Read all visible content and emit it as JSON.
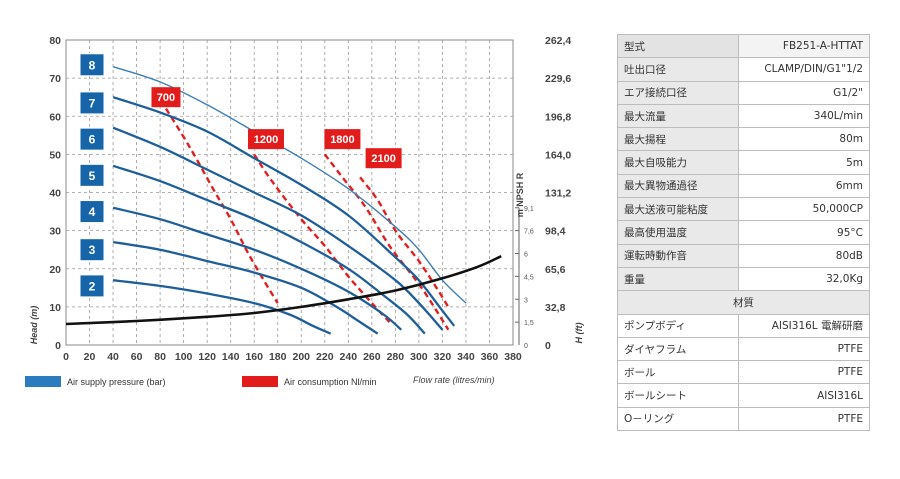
{
  "chart_data": {
    "type": "line",
    "xlabel": "Flow rate (litres/min)",
    "ylabel_left": "Head (m)",
    "ylabel_right": "H (ft)",
    "npsh_label": "m NPSH R",
    "xlim": [
      0,
      380
    ],
    "ylim": [
      0,
      80
    ],
    "x_ticks": [
      0,
      20,
      40,
      60,
      80,
      100,
      120,
      140,
      160,
      180,
      200,
      220,
      240,
      260,
      280,
      300,
      320,
      340,
      360,
      380
    ],
    "y_ticks": [
      0,
      10,
      20,
      30,
      40,
      50,
      60,
      70,
      80
    ],
    "ft_ticks": [
      {
        "y": 0,
        "label": "0"
      },
      {
        "y": 10,
        "label": "32,8"
      },
      {
        "y": 20,
        "label": "65,6"
      },
      {
        "y": 30,
        "label": "98,4"
      },
      {
        "y": 40,
        "label": "131,2"
      },
      {
        "y": 50,
        "label": "164,0"
      },
      {
        "y": 60,
        "label": "196,8"
      },
      {
        "y": 70,
        "label": "229,6"
      },
      {
        "y": 80,
        "label": "262,4"
      }
    ],
    "npsh_ticks": [
      {
        "y": 6,
        "label": "1,5"
      },
      {
        "y": 12,
        "label": "3"
      },
      {
        "y": 18,
        "label": "4,5"
      },
      {
        "y": 24,
        "label": "6"
      },
      {
        "y": 30,
        "label": "7,6"
      },
      {
        "y": 36,
        "label": "9,1"
      }
    ],
    "grid": true,
    "series": [
      {
        "name": "8",
        "color": "#3d7fb5",
        "points": [
          [
            40,
            73
          ],
          [
            80,
            69
          ],
          [
            120,
            63
          ],
          [
            160,
            56
          ],
          [
            200,
            49
          ],
          [
            240,
            41
          ],
          [
            280,
            31
          ],
          [
            300,
            25
          ],
          [
            320,
            17
          ],
          [
            340,
            11
          ]
        ]
      },
      {
        "name": "7",
        "color": "#1f5f99",
        "points": [
          [
            40,
            65
          ],
          [
            80,
            61
          ],
          [
            120,
            56
          ],
          [
            160,
            49
          ],
          [
            200,
            42
          ],
          [
            240,
            34
          ],
          [
            280,
            23
          ],
          [
            300,
            17
          ],
          [
            320,
            9
          ],
          [
            330,
            5
          ]
        ]
      },
      {
        "name": "6",
        "color": "#1f5f99",
        "points": [
          [
            40,
            57
          ],
          [
            80,
            52
          ],
          [
            120,
            46
          ],
          [
            160,
            40
          ],
          [
            200,
            34
          ],
          [
            240,
            26
          ],
          [
            280,
            17
          ],
          [
            300,
            11
          ],
          [
            320,
            4
          ]
        ]
      },
      {
        "name": "5",
        "color": "#1f5f99",
        "points": [
          [
            40,
            47
          ],
          [
            80,
            43
          ],
          [
            120,
            38
          ],
          [
            160,
            33
          ],
          [
            200,
            27
          ],
          [
            240,
            20
          ],
          [
            270,
            13
          ],
          [
            290,
            8
          ],
          [
            305,
            3
          ]
        ]
      },
      {
        "name": "4",
        "color": "#1f5f99",
        "points": [
          [
            40,
            36
          ],
          [
            80,
            33
          ],
          [
            120,
            29
          ],
          [
            160,
            25
          ],
          [
            200,
            20
          ],
          [
            240,
            14
          ],
          [
            270,
            8
          ],
          [
            285,
            4
          ]
        ]
      },
      {
        "name": "3",
        "color": "#1f5f99",
        "points": [
          [
            40,
            27
          ],
          [
            80,
            25
          ],
          [
            120,
            22
          ],
          [
            160,
            19
          ],
          [
            200,
            15
          ],
          [
            230,
            10
          ],
          [
            250,
            6
          ],
          [
            265,
            3
          ]
        ]
      },
      {
        "name": "2",
        "color": "#1f5f99",
        "points": [
          [
            40,
            17
          ],
          [
            80,
            15.5
          ],
          [
            120,
            13.5
          ],
          [
            160,
            11
          ],
          [
            190,
            8
          ],
          [
            210,
            5
          ],
          [
            225,
            3
          ]
        ]
      }
    ],
    "air_series": [
      {
        "name": "700",
        "points": [
          [
            85,
            62
          ],
          [
            105,
            52
          ],
          [
            125,
            41
          ],
          [
            140,
            33
          ],
          [
            155,
            24
          ],
          [
            170,
            16
          ],
          [
            180,
            11
          ]
        ]
      },
      {
        "name": "1200",
        "points": [
          [
            160,
            50
          ],
          [
            175,
            43
          ],
          [
            200,
            33
          ],
          [
            220,
            26
          ],
          [
            240,
            18
          ],
          [
            260,
            11
          ],
          [
            275,
            6
          ]
        ]
      },
      {
        "name": "1800",
        "points": [
          [
            220,
            50
          ],
          [
            235,
            44
          ],
          [
            255,
            36
          ],
          [
            275,
            26
          ],
          [
            300,
            16
          ],
          [
            315,
            9
          ],
          [
            325,
            4
          ]
        ]
      },
      {
        "name": "2100",
        "points": [
          [
            250,
            44
          ],
          [
            265,
            38
          ],
          [
            280,
            30
          ],
          [
            300,
            22
          ],
          [
            315,
            15
          ],
          [
            325,
            10
          ]
        ]
      }
    ],
    "npsh_curve": {
      "color": "#111111",
      "points": [
        [
          0,
          5.5
        ],
        [
          60,
          6.3
        ],
        [
          120,
          7.4
        ],
        [
          160,
          8.4
        ],
        [
          200,
          10
        ],
        [
          240,
          12
        ],
        [
          280,
          14.3
        ],
        [
          320,
          17.5
        ],
        [
          350,
          20.5
        ],
        [
          370,
          23.3
        ]
      ]
    },
    "legend": {
      "air_supply": "Air supply pressure (bar)",
      "air_consumption": "Air consumption Nl/min"
    },
    "label_positions": {
      "pressure": [
        {
          "label": "8",
          "y": 73.5
        },
        {
          "label": "7",
          "y": 63.5
        },
        {
          "label": "6",
          "y": 54
        },
        {
          "label": "5",
          "y": 44.5
        },
        {
          "label": "4",
          "y": 35
        },
        {
          "label": "3",
          "y": 25
        },
        {
          "label": "2",
          "y": 15.5
        }
      ],
      "air": [
        {
          "label": "700",
          "x": 85,
          "y": 65
        },
        {
          "label": "1200",
          "x": 170,
          "y": 54
        },
        {
          "label": "1800",
          "x": 235,
          "y": 54
        },
        {
          "label": "2100",
          "x": 270,
          "y": 49
        }
      ]
    }
  },
  "specs": {
    "header": {
      "key": "型式",
      "value": "FB251-A-HTTAT"
    },
    "rows": [
      {
        "key": "吐出口径",
        "value": "CLAMP/DIN/G1\"1/2"
      },
      {
        "key": "エア接続口径",
        "value": "G1/2\""
      },
      {
        "key": "最大流量",
        "value": "340L/min"
      },
      {
        "key": "最大揚程",
        "value": "80m"
      },
      {
        "key": "最大自吸能力",
        "value": "5m"
      },
      {
        "key": "最大異物通過径",
        "value": "6mm"
      },
      {
        "key": "最大送液可能粘度",
        "value": "50,000CP"
      },
      {
        "key": "最高使用温度",
        "value": "95°C"
      },
      {
        "key": "運転時動作音",
        "value": "80dB"
      },
      {
        "key": "重量",
        "value": "32,0Kg"
      }
    ],
    "materials_title": "材質",
    "materials": [
      {
        "key": "ポンプボディ",
        "value": "AISI316L 電解研磨"
      },
      {
        "key": "ダイヤフラム",
        "value": "PTFE"
      },
      {
        "key": "ボール",
        "value": "PTFE"
      },
      {
        "key": "ボールシート",
        "value": "AISI316L"
      },
      {
        "key": "O－リング",
        "value": "PTFE"
      }
    ]
  }
}
